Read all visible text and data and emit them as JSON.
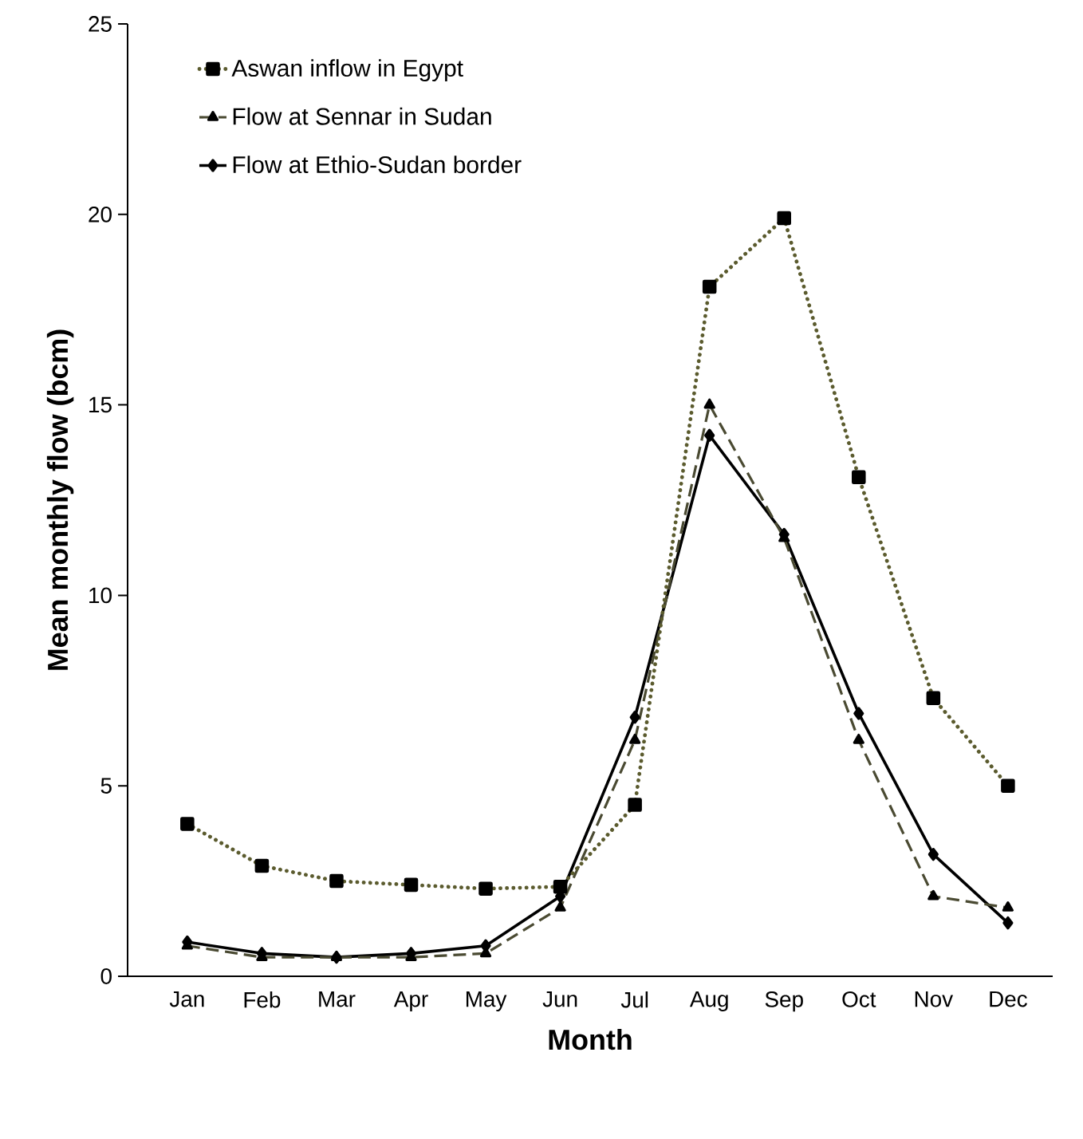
{
  "chart_data": {
    "type": "line",
    "xlabel": "Month",
    "ylabel": "Mean monthly flow (bcm)",
    "categories": [
      "Jan",
      "Feb",
      "Mar",
      "Apr",
      "May",
      "Jun",
      "Jul",
      "Aug",
      "Sep",
      "Oct",
      "Nov",
      "Dec"
    ],
    "ylim": [
      0,
      25
    ],
    "yticks": [
      0,
      5,
      10,
      15,
      20,
      25
    ],
    "grid": false,
    "legend": "top left",
    "series": [
      {
        "name": "Aswan inflow in Egypt",
        "color": "#5b5b2e",
        "marker": "square",
        "line_style": "dotted",
        "values": [
          4.0,
          2.9,
          2.5,
          2.4,
          2.3,
          2.35,
          4.5,
          18.1,
          19.9,
          13.1,
          7.3,
          5.0
        ]
      },
      {
        "name": "Flow at Sennar in Sudan",
        "color": "#4a4a32",
        "marker": "triangle",
        "line_style": "dashed",
        "values": [
          0.8,
          0.5,
          0.5,
          0.5,
          0.6,
          1.8,
          6.2,
          15.0,
          11.5,
          6.2,
          2.1,
          1.8
        ]
      },
      {
        "name": "Flow at Ethio-Sudan border",
        "color": "#000000",
        "marker": "diamond",
        "line_style": "solid",
        "values": [
          0.9,
          0.6,
          0.5,
          0.6,
          0.8,
          2.1,
          6.8,
          14.2,
          11.6,
          6.9,
          3.2,
          1.4
        ]
      }
    ]
  }
}
